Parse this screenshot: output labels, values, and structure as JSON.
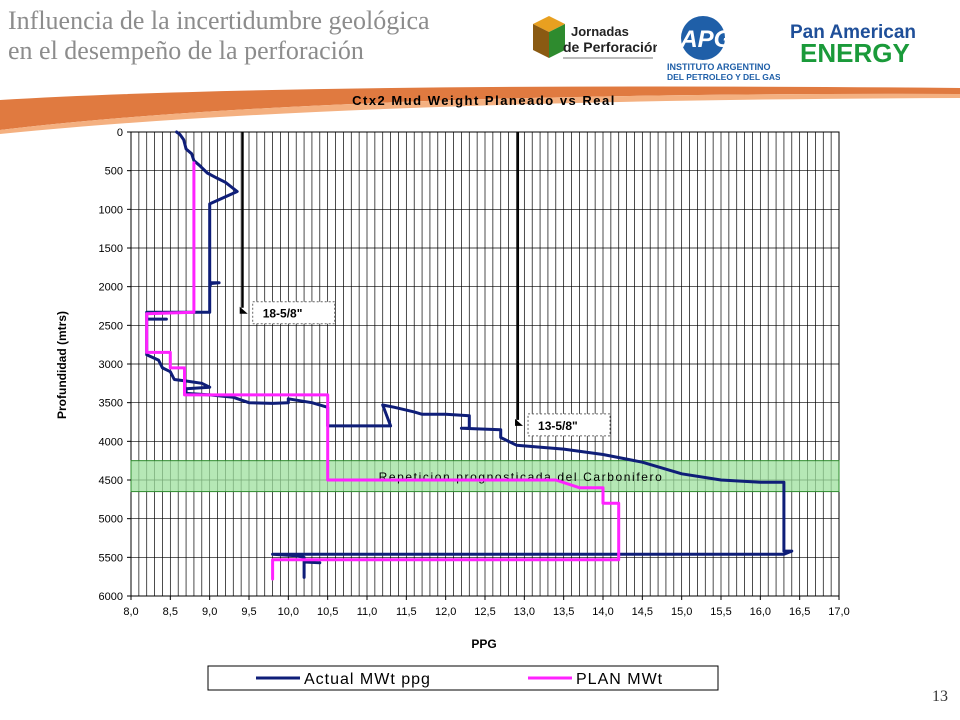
{
  "slide": {
    "title_line1": "Influencia de la incertidumbre geológica",
    "title_line2": "en el desempeño de la perforación",
    "page_number": "13"
  },
  "logos": {
    "jornadas_line1": "Jornadas",
    "jornadas_line2": "de Perforación",
    "iapg_acronym": "IAPG",
    "iapg_line1": "INSTITUTO ARGENTINO",
    "iapg_line2": "DEL PETROLEO Y DEL GAS",
    "pae_line1": "Pan American",
    "pae_line2": "ENERGY"
  },
  "colors": {
    "actual": "#0f1e78",
    "plan": "#ff22ff",
    "band_fill": "#9ee09e",
    "band_stroke": "#2e8b2e",
    "casing": "#000000"
  },
  "chart_data": {
    "type": "line",
    "title": "Ctx2 Mud Weight Planeado vs Real",
    "xlabel": "PPG",
    "ylabel": "Profundidad (mtrs)",
    "xlim": [
      8.0,
      17.0
    ],
    "ylim": [
      6000,
      0
    ],
    "y_inverted": true,
    "x_ticks": [
      "8,0",
      "8,5",
      "9,0",
      "9,5",
      "10,0",
      "10,5",
      "11,0",
      "11,5",
      "12,0",
      "12,5",
      "13,0",
      "13,5",
      "14,0",
      "14,5",
      "15,0",
      "15,5",
      "16,0",
      "16,5",
      "17,0"
    ],
    "y_ticks": [
      "0",
      "500",
      "1000",
      "1500",
      "2000",
      "2500",
      "3000",
      "3500",
      "4000",
      "4500",
      "5000",
      "5500",
      "6000"
    ],
    "grid": true,
    "legend_position": "bottom",
    "band": {
      "label": "Repeticion prognosticada del Carbonifero",
      "depth_from": 4250,
      "depth_to": 4650
    },
    "annotations": [
      {
        "label": "18-5/8\"",
        "x": 9.42,
        "depth_from": 0,
        "depth_to": 2350
      },
      {
        "label": "13-5/8\"",
        "x": 12.92,
        "depth_from": 0,
        "depth_to": 3800
      }
    ],
    "series": [
      {
        "name": "Actual MWt ppg",
        "points": [
          [
            8.58,
            0
          ],
          [
            8.62,
            30
          ],
          [
            8.67,
            100
          ],
          [
            8.7,
            220
          ],
          [
            8.77,
            280
          ],
          [
            8.8,
            370
          ],
          [
            8.87,
            430
          ],
          [
            8.97,
            530
          ],
          [
            9.1,
            600
          ],
          [
            9.2,
            650
          ],
          [
            9.35,
            770
          ],
          [
            9.0,
            930
          ],
          [
            9.0,
            2000
          ],
          [
            9.02,
            1950
          ],
          [
            9.12,
            1950
          ],
          [
            9.0,
            1960
          ],
          [
            9.0,
            2330
          ],
          [
            8.2,
            2330
          ],
          [
            8.2,
            2420
          ],
          [
            8.45,
            2420
          ],
          [
            8.2,
            2420
          ],
          [
            8.2,
            2880
          ],
          [
            8.35,
            2950
          ],
          [
            8.4,
            3050
          ],
          [
            8.5,
            3100
          ],
          [
            8.55,
            3200
          ],
          [
            8.7,
            3220
          ],
          [
            8.9,
            3250
          ],
          [
            9.0,
            3300
          ],
          [
            8.7,
            3320
          ],
          [
            8.7,
            3380
          ],
          [
            9.0,
            3400
          ],
          [
            9.3,
            3430
          ],
          [
            9.5,
            3500
          ],
          [
            9.8,
            3510
          ],
          [
            10.0,
            3500
          ],
          [
            10.0,
            3450
          ],
          [
            10.3,
            3500
          ],
          [
            10.5,
            3560
          ],
          [
            10.5,
            3800
          ],
          [
            11.3,
            3800
          ],
          [
            11.2,
            3530
          ],
          [
            11.35,
            3560
          ],
          [
            11.6,
            3620
          ],
          [
            11.7,
            3650
          ],
          [
            12.0,
            3650
          ],
          [
            12.3,
            3670
          ],
          [
            12.3,
            3830
          ],
          [
            12.2,
            3830
          ],
          [
            12.7,
            3850
          ],
          [
            12.7,
            3950
          ],
          [
            12.9,
            4050
          ],
          [
            13.5,
            4100
          ],
          [
            14.0,
            4170
          ],
          [
            14.5,
            4270
          ],
          [
            15.0,
            4420
          ],
          [
            15.5,
            4500
          ],
          [
            16.0,
            4530
          ],
          [
            16.3,
            4530
          ],
          [
            16.3,
            5420
          ],
          [
            16.4,
            5420
          ],
          [
            16.3,
            5460
          ],
          [
            13.5,
            5460
          ],
          [
            9.8,
            5460
          ],
          [
            10.1,
            5480
          ],
          [
            10.2,
            5500
          ],
          [
            10.2,
            5760
          ],
          [
            10.2,
            5560
          ],
          [
            10.4,
            5570
          ]
        ]
      },
      {
        "name": "PLAN  MWt",
        "points": [
          [
            8.8,
            400
          ],
          [
            8.8,
            2330
          ],
          [
            8.2,
            2350
          ],
          [
            8.2,
            2850
          ],
          [
            8.5,
            2850
          ],
          [
            8.5,
            3050
          ],
          [
            8.68,
            3050
          ],
          [
            8.68,
            3400
          ],
          [
            10.5,
            3400
          ],
          [
            10.5,
            4500
          ],
          [
            13.4,
            4500
          ],
          [
            13.7,
            4600
          ],
          [
            14.0,
            4600
          ],
          [
            14.0,
            4800
          ],
          [
            14.2,
            4800
          ],
          [
            14.2,
            5530
          ],
          [
            9.8,
            5530
          ],
          [
            9.8,
            5780
          ]
        ]
      }
    ]
  }
}
